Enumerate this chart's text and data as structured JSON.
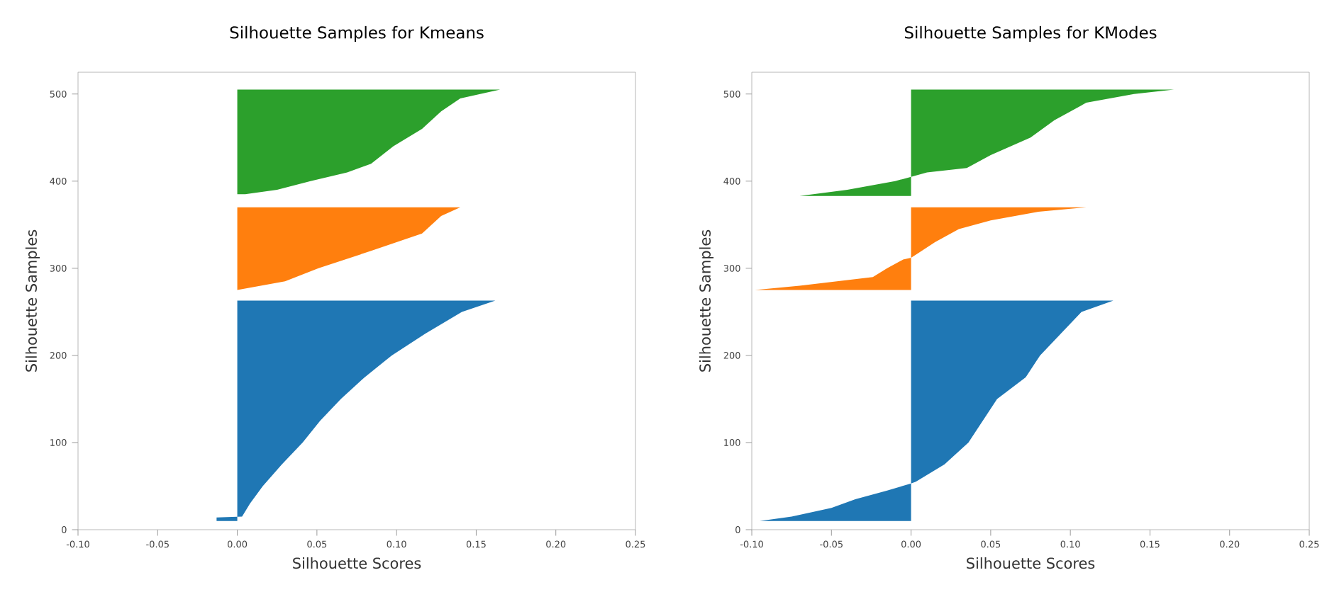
{
  "chart_data": [
    {
      "type": "area",
      "orientation": "horizontal",
      "title": "Silhouette Samples for Kmeans",
      "xlabel": "Silhouette Scores",
      "ylabel": "Silhouette Samples",
      "xlim": [
        -0.1,
        0.25
      ],
      "xticks": [
        {
          "value": -0.1,
          "label": "-0.10"
        },
        {
          "value": -0.05,
          "label": "-0.05"
        },
        {
          "value": 0,
          "label": "0.00"
        },
        {
          "value": 0.05,
          "label": "0.05"
        },
        {
          "value": 0.1,
          "label": "0.10"
        },
        {
          "value": 0.15,
          "label": "0.15"
        },
        {
          "value": 0.2,
          "label": "0.20"
        },
        {
          "value": 0.25,
          "label": "0.25"
        }
      ],
      "ylim": [
        0,
        525
      ],
      "yticks": [
        0,
        100,
        200,
        300,
        400,
        500
      ],
      "series": [
        {
          "color": "#1f77b4",
          "x": [
            10,
            14,
            15,
            30,
            50,
            75,
            100,
            125,
            150,
            175,
            200,
            225,
            250,
            263
          ],
          "values": [
            -0.013,
            -0.013,
            0.003,
            0.008,
            0.016,
            0.028,
            0.041,
            0.052,
            0.065,
            0.08,
            0.097,
            0.118,
            0.141,
            0.162
          ]
        },
        {
          "color": "#ff7f0e",
          "x": [
            275,
            285,
            300,
            320,
            340,
            360,
            370
          ],
          "values": [
            0.0,
            0.03,
            0.051,
            0.084,
            0.116,
            0.128,
            0.14
          ]
        },
        {
          "color": "#2ca02c",
          "x": [
            385,
            390,
            400,
            410,
            420,
            440,
            460,
            480,
            495,
            505
          ],
          "values": [
            0.005,
            0.025,
            0.046,
            0.069,
            0.084,
            0.098,
            0.116,
            0.128,
            0.14,
            0.165
          ]
        }
      ]
    },
    {
      "type": "area",
      "orientation": "horizontal",
      "title": "Silhouette Samples for KModes",
      "xlabel": "Silhouette Scores",
      "ylabel": "Silhouette Samples",
      "xlim": [
        -0.1,
        0.25
      ],
      "xticks": [
        {
          "value": -0.1,
          "label": "-0.10"
        },
        {
          "value": -0.05,
          "label": "-0.05"
        },
        {
          "value": 0,
          "label": "0.00"
        },
        {
          "value": 0.05,
          "label": "0.05"
        },
        {
          "value": 0.1,
          "label": "0.10"
        },
        {
          "value": 0.15,
          "label": "0.15"
        },
        {
          "value": 0.2,
          "label": "0.20"
        },
        {
          "value": 0.25,
          "label": "0.25"
        }
      ],
      "ylim": [
        0,
        525
      ],
      "yticks": [
        0,
        100,
        200,
        300,
        400,
        500
      ],
      "series": [
        {
          "color": "#1f77b4",
          "x": [
            10,
            15,
            25,
            35,
            45,
            53,
            55,
            75,
            100,
            150,
            175,
            200,
            225,
            250,
            263
          ],
          "values": [
            -0.095,
            -0.075,
            -0.05,
            -0.035,
            -0.015,
            0.0,
            0.003,
            0.021,
            0.036,
            0.054,
            0.072,
            0.081,
            0.094,
            0.107,
            0.127
          ]
        },
        {
          "color": "#ff7f0e",
          "x": [
            275,
            280,
            290,
            300,
            310,
            312,
            318,
            330,
            345,
            355,
            365,
            370
          ],
          "values": [
            -0.098,
            -0.07,
            -0.024,
            -0.015,
            -0.005,
            0.0,
            0.005,
            0.015,
            0.03,
            0.05,
            0.08,
            0.11
          ]
        },
        {
          "color": "#2ca02c",
          "x": [
            383,
            390,
            400,
            405,
            410,
            415,
            430,
            450,
            470,
            490,
            500,
            505
          ],
          "values": [
            -0.07,
            -0.04,
            -0.01,
            0.0,
            0.01,
            0.035,
            0.05,
            0.075,
            0.09,
            0.11,
            0.14,
            0.165
          ]
        }
      ]
    }
  ]
}
